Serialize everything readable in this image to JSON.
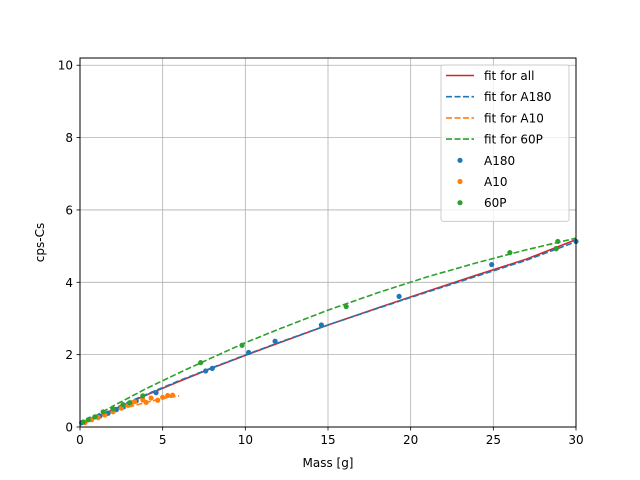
{
  "chart_data": {
    "type": "scatter",
    "title": "",
    "xlabel": "Mass [g]",
    "ylabel": "cps-Cs",
    "xlim": [
      0,
      30
    ],
    "ylim": [
      0,
      10.2
    ],
    "xticks": [
      0,
      5,
      10,
      15,
      20,
      25,
      30
    ],
    "yticks": [
      0,
      2,
      4,
      6,
      8,
      10
    ],
    "grid": true,
    "legend_position": "top-right",
    "fits": [
      {
        "name": "fit for all",
        "color": "#d62728",
        "style": "solid",
        "x": [
          0,
          2,
          4,
          6,
          8,
          10,
          12,
          15,
          18,
          21,
          24,
          27,
          30
        ],
        "y": [
          0.05,
          0.48,
          0.88,
          1.26,
          1.63,
          1.98,
          2.32,
          2.82,
          3.29,
          3.75,
          4.2,
          4.64,
          5.18
        ]
      },
      {
        "name": "fit for A180",
        "color": "#1f77b4",
        "style": "dashed",
        "x": [
          0,
          2,
          4,
          6,
          8,
          10,
          12,
          15,
          18,
          21,
          24,
          27,
          30
        ],
        "y": [
          0.06,
          0.5,
          0.9,
          1.28,
          1.64,
          1.99,
          2.33,
          2.82,
          3.28,
          3.73,
          4.17,
          4.61,
          5.12
        ]
      },
      {
        "name": "fit for A10",
        "color": "#ff7f0e",
        "style": "dashed",
        "x": [
          0,
          1,
          2,
          3,
          4,
          5,
          6
        ],
        "y": [
          0.1,
          0.26,
          0.42,
          0.56,
          0.68,
          0.79,
          0.86
        ]
      },
      {
        "name": "fit for 60P",
        "color": "#2ca02c",
        "style": "dashed",
        "x": [
          0,
          2,
          4,
          6,
          8,
          10,
          12,
          15,
          18,
          21,
          24,
          27,
          30
        ],
        "y": [
          0.07,
          0.58,
          1.06,
          1.5,
          1.92,
          2.33,
          2.7,
          3.23,
          3.71,
          4.15,
          4.54,
          4.9,
          5.22
        ]
      }
    ],
    "series": [
      {
        "name": "A180",
        "color": "#1f77b4",
        "points": [
          [
            0.1,
            0.12
          ],
          [
            0.6,
            0.22
          ],
          [
            1.2,
            0.3
          ],
          [
            1.7,
            0.38
          ],
          [
            2.2,
            0.48
          ],
          [
            2.6,
            0.55
          ],
          [
            3.4,
            0.72
          ],
          [
            4.6,
            0.95
          ],
          [
            7.6,
            1.55
          ],
          [
            8.0,
            1.62
          ],
          [
            10.2,
            2.06
          ],
          [
            11.8,
            2.37
          ],
          [
            14.6,
            2.82
          ],
          [
            19.3,
            3.61
          ],
          [
            24.9,
            4.49
          ],
          [
            28.8,
            4.93
          ],
          [
            30.0,
            5.13
          ]
        ]
      },
      {
        "name": "A10",
        "color": "#ff7f0e",
        "points": [
          [
            0.3,
            0.12
          ],
          [
            0.7,
            0.2
          ],
          [
            1.1,
            0.26
          ],
          [
            1.5,
            0.33
          ],
          [
            2.0,
            0.42
          ],
          [
            2.5,
            0.52
          ],
          [
            2.9,
            0.6
          ],
          [
            3.1,
            0.66
          ],
          [
            3.3,
            0.7
          ],
          [
            3.8,
            0.75
          ],
          [
            4.0,
            0.68
          ],
          [
            4.3,
            0.8
          ],
          [
            4.7,
            0.74
          ],
          [
            5.0,
            0.82
          ],
          [
            5.3,
            0.87
          ],
          [
            5.6,
            0.88
          ]
        ]
      },
      {
        "name": "60P",
        "color": "#2ca02c",
        "points": [
          [
            0.2,
            0.14
          ],
          [
            0.5,
            0.2
          ],
          [
            0.9,
            0.28
          ],
          [
            1.4,
            0.42
          ],
          [
            2.0,
            0.5
          ],
          [
            2.6,
            0.62
          ],
          [
            3.0,
            0.67
          ],
          [
            3.8,
            0.86
          ],
          [
            7.3,
            1.78
          ],
          [
            9.8,
            2.26
          ],
          [
            16.1,
            3.33
          ],
          [
            26.0,
            4.82
          ],
          [
            28.8,
            4.93
          ],
          [
            28.9,
            5.13
          ]
        ]
      }
    ]
  }
}
